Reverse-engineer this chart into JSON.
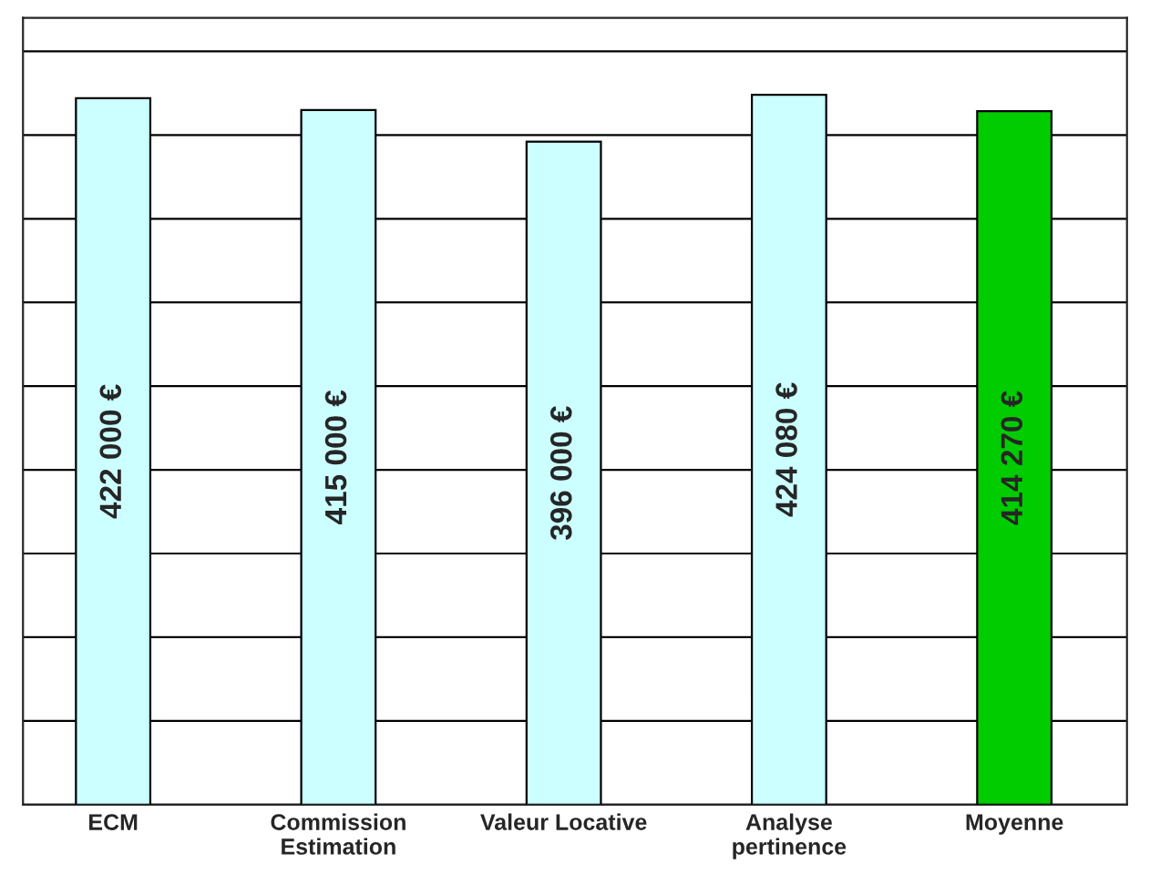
{
  "chart_data": {
    "type": "bar",
    "categories": [
      "ECM",
      "Commission\nEstimation",
      "Valeur Locative",
      "Analyse\npertinence",
      "Moyenne"
    ],
    "values": [
      422000,
      415000,
      396000,
      424080,
      414270
    ],
    "colors": [
      "#ccffff",
      "#ccffff",
      "#ccffff",
      "#ccffff",
      "#00cc00"
    ],
    "value_labels": [
      "422 000 €",
      "415 000 €",
      "396 000 €",
      "424 080 €",
      "414 270 €"
    ],
    "ylim": [
      0,
      470000
    ],
    "yticks": [
      {
        "value": 0,
        "label": null
      },
      {
        "value": 50000,
        "label": null
      },
      {
        "value": 100000,
        "label": null
      },
      {
        "value": 150000,
        "label": null
      },
      {
        "value": 200000,
        "label": null
      },
      {
        "value": 250000,
        "label": null
      },
      {
        "value": 300000,
        "label": null
      },
      {
        "value": 350000,
        "label": null
      },
      {
        "value": 400000,
        "label": null
      },
      {
        "value": 450000,
        "label": null
      }
    ],
    "grid": "y",
    "tick_labels": "x",
    "legend": false
  }
}
